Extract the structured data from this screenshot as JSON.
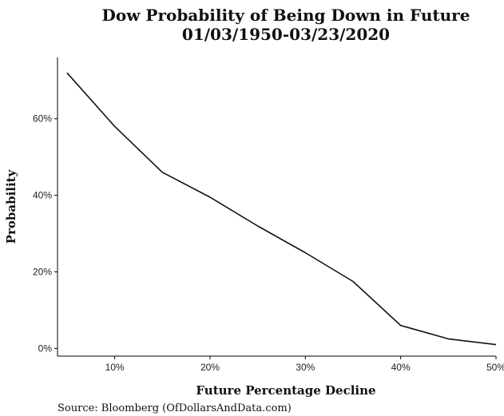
{
  "chart_data": {
    "type": "line",
    "title_line1": "Dow Probability of Being Down in Future",
    "title_line2": "01/03/1950-03/23/2020",
    "xlabel": "Future Percentage Decline",
    "ylabel": "Probability",
    "x_unit": "percent",
    "y_unit": "percent",
    "xlim": [
      4,
      50
    ],
    "ylim": [
      -2,
      76
    ],
    "x_ticks": [
      {
        "value": 10,
        "label": "10%"
      },
      {
        "value": 20,
        "label": "20%"
      },
      {
        "value": 30,
        "label": "30%"
      },
      {
        "value": 40,
        "label": "40%"
      },
      {
        "value": 50,
        "label": "50%"
      }
    ],
    "y_ticks": [
      {
        "value": 0,
        "label": "0%"
      },
      {
        "value": 20,
        "label": "20%"
      },
      {
        "value": 40,
        "label": "40%"
      },
      {
        "value": 60,
        "label": "60%"
      }
    ],
    "grid": false,
    "legend": "none",
    "series": [
      {
        "color": "#111111",
        "x": [
          5,
          10,
          15,
          20,
          25,
          30,
          35,
          40,
          45,
          50
        ],
        "y": [
          72,
          58,
          46,
          39.5,
          32,
          25,
          17.5,
          6,
          2.5,
          1
        ]
      }
    ]
  },
  "source": "Source:  Bloomberg (OfDollarsAndData.com)"
}
